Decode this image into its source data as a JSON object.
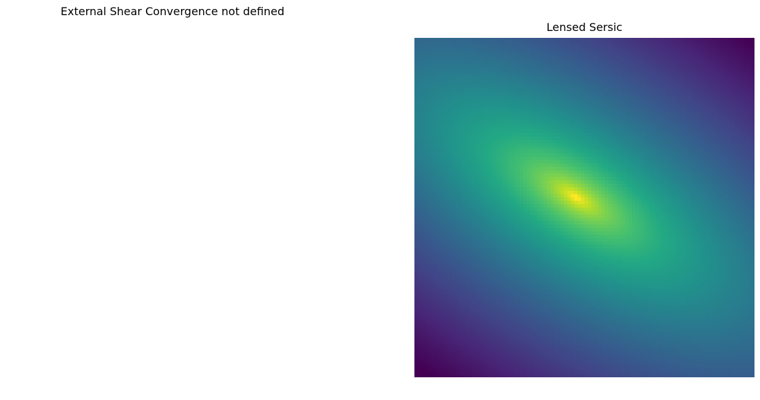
{
  "message": {
    "text": "External Shear Convergence not defined"
  },
  "chart_data": {
    "type": "heatmap",
    "title": "Lensed Sersic",
    "colormap": "viridis",
    "axes_visible": false,
    "grid": false,
    "colorbar": false,
    "orientation": "diagonal",
    "peak_position": "center",
    "dark_corners": [
      "top-right",
      "bottom-left"
    ]
  }
}
